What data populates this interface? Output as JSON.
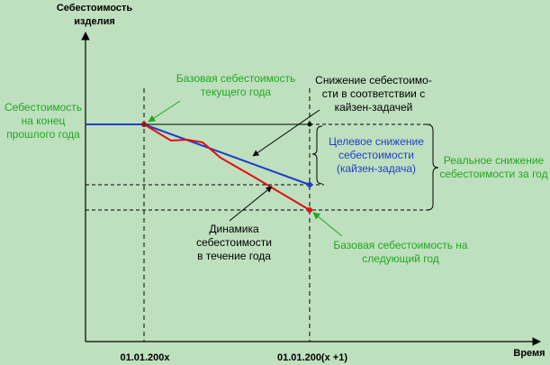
{
  "axes": {
    "y_title": "Себестоимость\nизделия",
    "x_title": "Время",
    "x_tick_start": "01.01.200x",
    "x_tick_end": "01.01.200(x +1)"
  },
  "labels": {
    "prev_year_end": "Себестоимость\nна конец\nпрошлого года",
    "base_cost_current": "Базовая себестоимость\nтекущего года",
    "kaizen_reduction": "Снижение себестоимо-\nсти в соответствии с\nкайзен-задачей",
    "target_reduction": "Целевое снижение\nсебестоимости\n(кайзен-задача)",
    "real_reduction": "Реальное снижение\nсебестоимости за год",
    "cost_dynamics": "Динамика\nсебестоимости\nв течение года",
    "base_cost_next": "Базовая себестоимость на\nследующий год"
  },
  "colors": {
    "background": "#bfe0bf",
    "target_line": "#1f3fc8",
    "actual_line": "#e01010",
    "green_text": "#1fa81f",
    "axis": "#000000"
  }
}
